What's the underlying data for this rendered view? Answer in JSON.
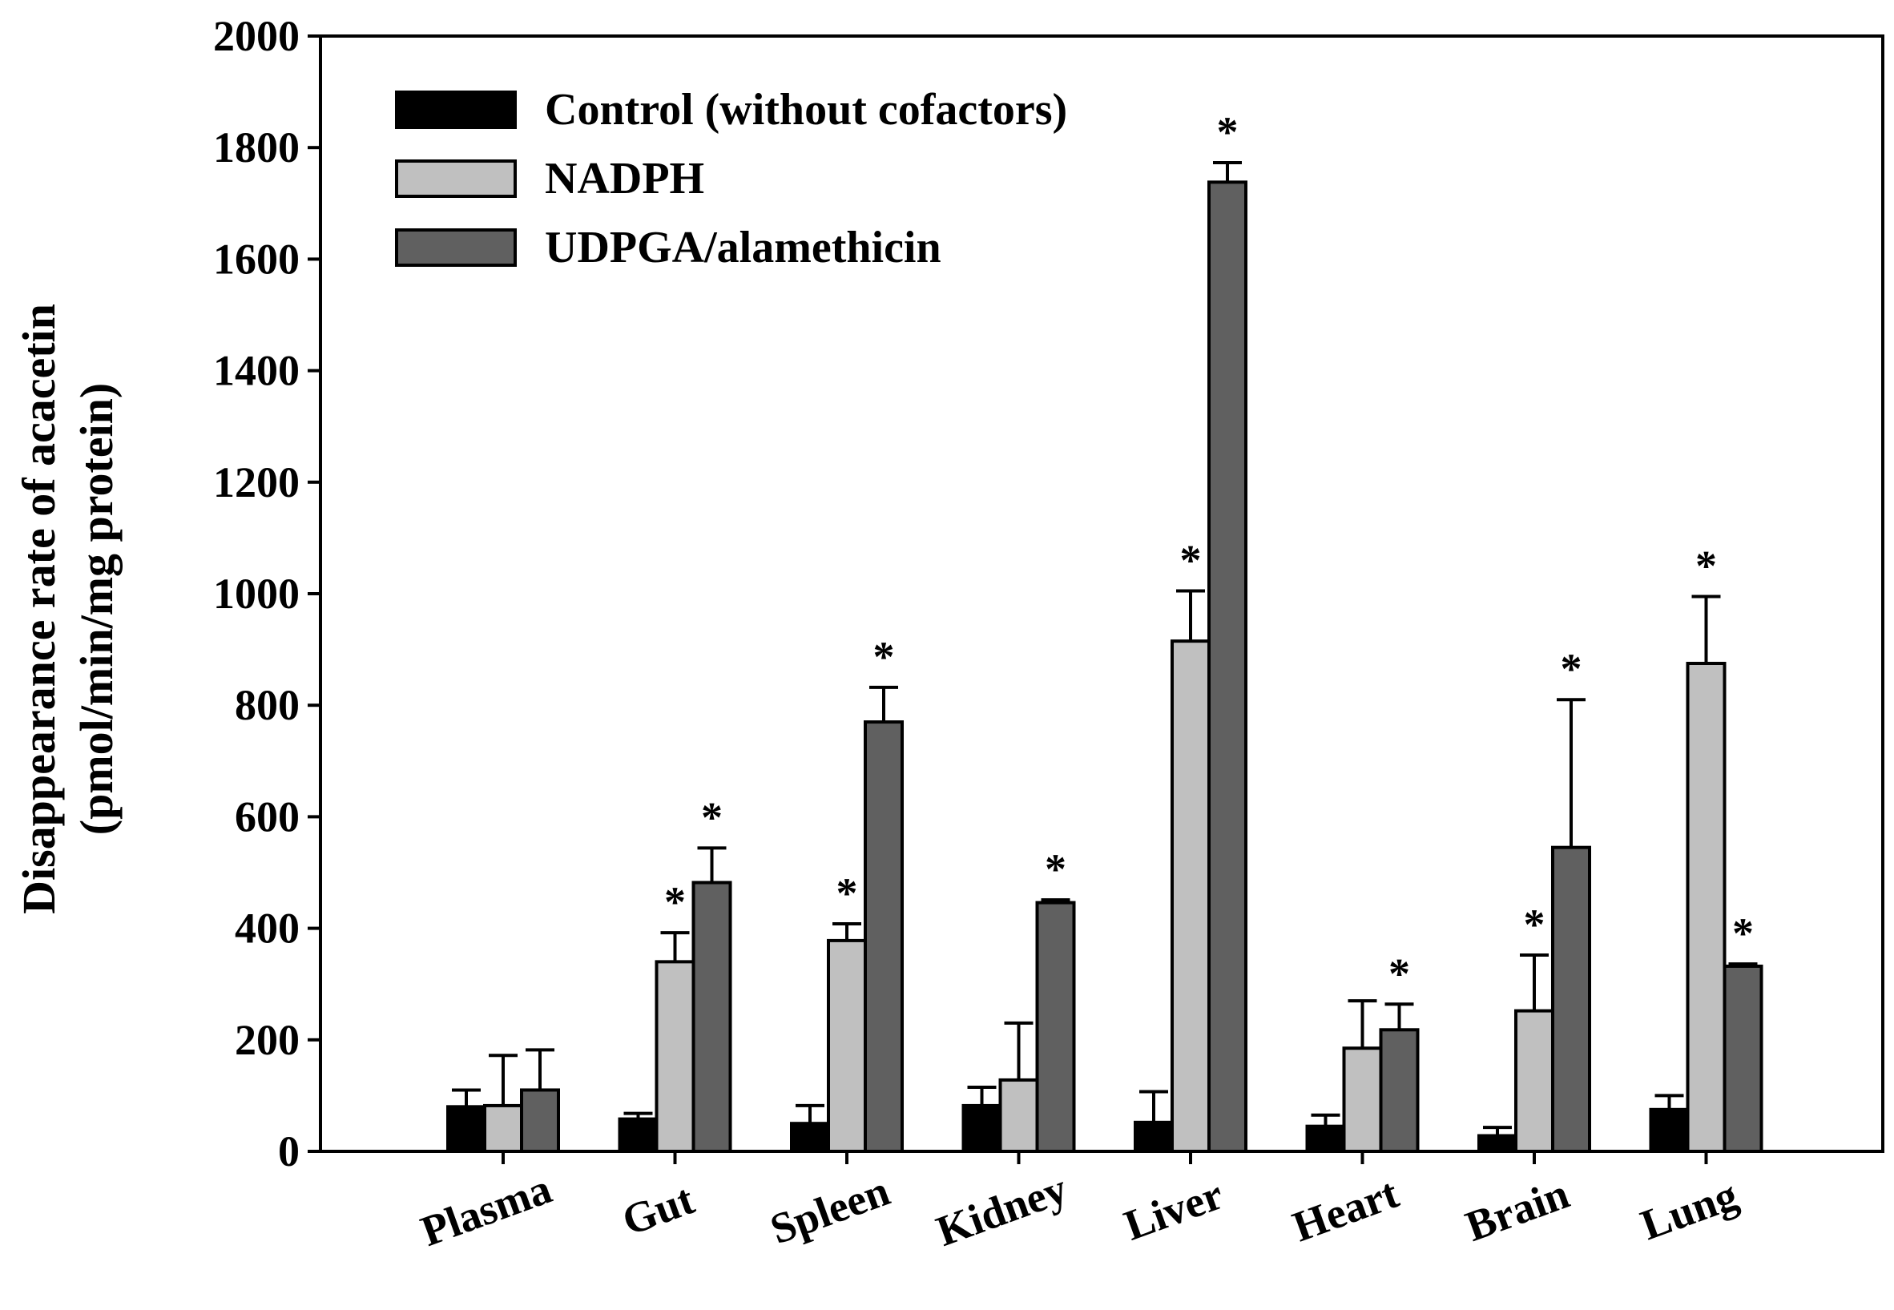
{
  "chart_data": {
    "type": "bar",
    "title": "",
    "xlabel": "",
    "ylabel": [
      "Disappearance rate of acacetin",
      "(pmol/min/mg protein)"
    ],
    "ylim": [
      0,
      2000
    ],
    "yticks": [
      0,
      200,
      400,
      600,
      800,
      1000,
      1200,
      1400,
      1600,
      1800,
      2000
    ],
    "categories": [
      "Plasma",
      "Gut",
      "Spleen",
      "Kidney",
      "Liver",
      "Heart",
      "Brain",
      "Lung"
    ],
    "legend_position": "top-left",
    "series": [
      {
        "name": "Control (without cofactors)",
        "color": "#000000",
        "values": [
          80,
          58,
          50,
          82,
          52,
          45,
          28,
          75
        ],
        "errors": [
          30,
          10,
          32,
          33,
          55,
          20,
          15,
          25
        ],
        "significant": [
          false,
          false,
          false,
          false,
          false,
          false,
          false,
          false
        ]
      },
      {
        "name": "NADPH",
        "color": "#c0c0c0",
        "values": [
          82,
          340,
          378,
          128,
          915,
          185,
          252,
          875
        ],
        "errors": [
          90,
          52,
          30,
          102,
          90,
          85,
          100,
          120
        ],
        "significant": [
          false,
          true,
          true,
          false,
          true,
          false,
          true,
          true
        ]
      },
      {
        "name": "UDPGA/alamethicin",
        "color": "#606060",
        "values": [
          110,
          482,
          770,
          446,
          1738,
          218,
          545,
          332
        ],
        "errors": [
          72,
          62,
          62,
          5,
          35,
          46,
          265,
          4
        ],
        "significant": [
          false,
          true,
          true,
          true,
          true,
          true,
          true,
          true
        ]
      }
    ],
    "significance_marker": "*"
  }
}
